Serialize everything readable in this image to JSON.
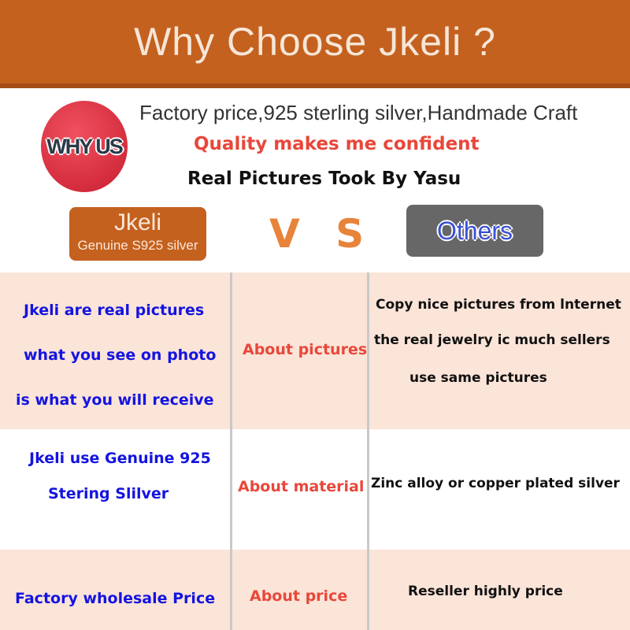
{
  "banner": {
    "title": "Why Choose Jkeli ?"
  },
  "badge": {
    "label": "WHY US"
  },
  "taglines": [
    "Factory price,925 sterling silver,Handmade Craft",
    "Quality makes me confident",
    "Real Pictures Took By Yasu"
  ],
  "brand": {
    "name": "Jkeli",
    "subtitle": "Genuine S925 silver"
  },
  "vs": "V S",
  "others": "Others",
  "colors": {
    "accent": "#c4611f",
    "row_tint": "#fbe4d8",
    "jkeli_text": "#1414e0",
    "topic_text": "#e8473a"
  },
  "rows": [
    {
      "jkeli": [
        "Jkeli are real pictures",
        "what you see on photo",
        "is what you will receive"
      ],
      "topic": "About pictures",
      "others": [
        "Copy nice pictures from lnternet",
        "the real jewelry ic much sellers",
        "use same pictures"
      ]
    },
    {
      "jkeli": [
        "Jkeli use Genuine 925",
        "Stering Slilver"
      ],
      "topic": "About material",
      "others": [
        "Zinc alloy or copper plated silver"
      ]
    },
    {
      "jkeli": [
        "Factory wholesale Price"
      ],
      "topic": "About price",
      "others": [
        "Reseller highly price"
      ]
    }
  ]
}
